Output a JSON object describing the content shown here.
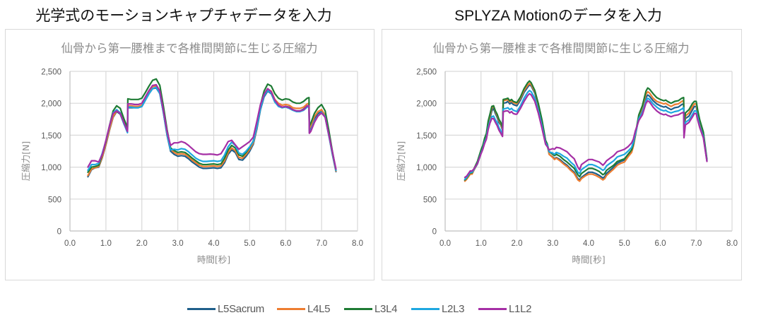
{
  "headings": {
    "left": "光学式のモーションキャプチャデータを入力",
    "right": "SPLYZA Motionのデータを入力"
  },
  "legend": [
    {
      "name": "L5Sacrum",
      "color": "#1f5f8b"
    },
    {
      "name": "L4L5",
      "color": "#ed7d31"
    },
    {
      "name": "L3L4",
      "color": "#1e7b34"
    },
    {
      "name": "L2L3",
      "color": "#1ea7e0"
    },
    {
      "name": "L1L2",
      "color": "#a52fa5"
    }
  ],
  "chart_data": [
    {
      "type": "line",
      "title": "仙骨から第一腰椎まで各椎間関節に生じる圧縮力",
      "xlabel": "時間[秒]",
      "ylabel": "圧縮力[N]",
      "xlim": [
        0,
        8
      ],
      "ylim": [
        0,
        2500
      ],
      "xticks": [
        "0.0",
        "1.0",
        "2.0",
        "3.0",
        "4.0",
        "5.0",
        "6.0",
        "7.0",
        "8.0"
      ],
      "yticks": [
        "0",
        "500",
        "1,000",
        "1,500",
        "2,000",
        "2,500"
      ],
      "grid": true,
      "legend": "bottom",
      "x": [
        0.5,
        0.6,
        0.7,
        0.8,
        0.9,
        1.0,
        1.1,
        1.2,
        1.3,
        1.4,
        1.5,
        1.6,
        1.61,
        1.7,
        1.8,
        1.9,
        2.0,
        2.1,
        2.2,
        2.3,
        2.4,
        2.5,
        2.6,
        2.7,
        2.8,
        2.9,
        3.0,
        3.1,
        3.2,
        3.3,
        3.4,
        3.5,
        3.6,
        3.7,
        3.8,
        3.9,
        4.0,
        4.1,
        4.2,
        4.3,
        4.4,
        4.5,
        4.6,
        4.7,
        4.8,
        4.9,
        5.0,
        5.1,
        5.2,
        5.3,
        5.4,
        5.5,
        5.6,
        5.7,
        5.8,
        5.9,
        6.0,
        6.1,
        6.2,
        6.3,
        6.4,
        6.5,
        6.6,
        6.65,
        6.66,
        6.7,
        6.8,
        6.9,
        7.0,
        7.1,
        7.2,
        7.3,
        7.4
      ],
      "series": [
        {
          "name": "L5Sacrum",
          "values": [
            850,
            960,
            990,
            1000,
            1150,
            1350,
            1580,
            1780,
            1870,
            1830,
            1680,
            1560,
            1930,
            1930,
            1930,
            1930,
            1950,
            2050,
            2150,
            2230,
            2240,
            2150,
            1850,
            1500,
            1250,
            1200,
            1170,
            1180,
            1170,
            1130,
            1080,
            1040,
            1000,
            980,
            980,
            985,
            990,
            980,
            990,
            1070,
            1200,
            1270,
            1230,
            1120,
            1110,
            1170,
            1250,
            1360,
            1600,
            1900,
            2100,
            2190,
            2150,
            2020,
            1960,
            1930,
            1950,
            1940,
            1900,
            1880,
            1880,
            1910,
            1960,
            1960,
            1580,
            1620,
            1760,
            1840,
            1870,
            1780,
            1500,
            1200,
            930
          ]
        },
        {
          "name": "L4L5",
          "values": [
            870,
            970,
            990,
            1010,
            1160,
            1360,
            1590,
            1790,
            1880,
            1850,
            1700,
            1580,
            1960,
            1960,
            1950,
            1950,
            1970,
            2070,
            2170,
            2260,
            2270,
            2170,
            1870,
            1520,
            1280,
            1230,
            1200,
            1210,
            1200,
            1160,
            1110,
            1070,
            1030,
            1010,
            1010,
            1015,
            1020,
            1010,
            1020,
            1100,
            1230,
            1300,
            1260,
            1150,
            1140,
            1200,
            1280,
            1380,
            1620,
            1930,
            2130,
            2220,
            2190,
            2060,
            2000,
            1970,
            1980,
            1970,
            1930,
            1920,
            1920,
            1940,
            1990,
            2000,
            1600,
            1650,
            1790,
            1870,
            1900,
            1810,
            1520,
            1220,
            940
          ]
        },
        {
          "name": "L3L4",
          "values": [
            920,
            1000,
            1010,
            1030,
            1200,
            1400,
            1650,
            1880,
            1960,
            1920,
            1760,
            1620,
            2070,
            2060,
            2060,
            2060,
            2080,
            2170,
            2270,
            2360,
            2380,
            2280,
            1950,
            1590,
            1300,
            1260,
            1230,
            1240,
            1230,
            1190,
            1140,
            1100,
            1060,
            1040,
            1040,
            1045,
            1050,
            1040,
            1050,
            1140,
            1270,
            1340,
            1300,
            1190,
            1170,
            1230,
            1310,
            1410,
            1660,
            1970,
            2190,
            2300,
            2270,
            2150,
            2080,
            2050,
            2070,
            2060,
            2020,
            2000,
            2000,
            2030,
            2080,
            2090,
            1640,
            1690,
            1840,
            1930,
            1980,
            1880,
            1580,
            1250,
            950
          ]
        },
        {
          "name": "L2L3",
          "values": [
            950,
            1040,
            1040,
            1060,
            1220,
            1410,
            1640,
            1850,
            1900,
            1850,
            1680,
            1540,
            1940,
            1940,
            1930,
            1930,
            1950,
            2050,
            2150,
            2230,
            2250,
            2150,
            1850,
            1520,
            1270,
            1280,
            1270,
            1290,
            1280,
            1240,
            1190,
            1140,
            1110,
            1090,
            1090,
            1095,
            1100,
            1090,
            1100,
            1190,
            1320,
            1390,
            1340,
            1220,
            1200,
            1250,
            1320,
            1400,
            1630,
            1920,
            2120,
            2200,
            2160,
            2020,
            1950,
            1930,
            1940,
            1920,
            1890,
            1870,
            1870,
            1890,
            1940,
            1950,
            1540,
            1580,
            1720,
            1800,
            1860,
            1790,
            1500,
            1220,
            950
          ]
        },
        {
          "name": "L1L2",
          "values": [
            1000,
            1100,
            1100,
            1080,
            1200,
            1420,
            1650,
            1840,
            1880,
            1840,
            1700,
            1560,
            1990,
            1990,
            1980,
            1980,
            2000,
            2100,
            2200,
            2280,
            2290,
            2190,
            1880,
            1560,
            1340,
            1380,
            1380,
            1400,
            1380,
            1340,
            1290,
            1240,
            1210,
            1200,
            1200,
            1205,
            1200,
            1190,
            1210,
            1300,
            1400,
            1420,
            1350,
            1280,
            1320,
            1360,
            1400,
            1470,
            1720,
            1980,
            2140,
            2230,
            2180,
            2050,
            1970,
            1940,
            1950,
            1930,
            1900,
            1880,
            1880,
            1900,
            1960,
            1960,
            1530,
            1560,
            1700,
            1800,
            1850,
            1780,
            1510,
            1240,
            970
          ]
        }
      ]
    },
    {
      "type": "line",
      "title": "仙骨から第一腰椎まで各椎間関節に生じる圧縮力",
      "xlabel": "時間[秒]",
      "ylabel": "圧縮力[N]",
      "xlim": [
        0,
        8
      ],
      "ylim": [
        0,
        2500
      ],
      "xticks": [
        "0.0",
        "1.0",
        "2.0",
        "3.0",
        "4.0",
        "5.0",
        "6.0",
        "7.0",
        "8.0"
      ],
      "yticks": [
        "0",
        "500",
        "1,000",
        "1,500",
        "2,000",
        "2,500"
      ],
      "grid": true,
      "legend": "bottom",
      "x": [
        0.55,
        0.6,
        0.65,
        0.7,
        0.75,
        0.8,
        0.9,
        1.0,
        1.05,
        1.1,
        1.15,
        1.2,
        1.25,
        1.3,
        1.35,
        1.4,
        1.45,
        1.5,
        1.55,
        1.6,
        1.62,
        1.7,
        1.75,
        1.8,
        1.85,
        1.9,
        1.95,
        2.0,
        2.1,
        2.2,
        2.3,
        2.35,
        2.4,
        2.5,
        2.6,
        2.7,
        2.8,
        2.85,
        2.9,
        3.0,
        3.05,
        3.1,
        3.2,
        3.3,
        3.4,
        3.5,
        3.6,
        3.7,
        3.75,
        3.8,
        3.9,
        4.0,
        4.1,
        4.2,
        4.3,
        4.4,
        4.45,
        4.5,
        4.6,
        4.7,
        4.8,
        4.9,
        5.0,
        5.1,
        5.2,
        5.25,
        5.3,
        5.4,
        5.5,
        5.6,
        5.65,
        5.7,
        5.8,
        5.9,
        6.0,
        6.1,
        6.15,
        6.2,
        6.3,
        6.4,
        6.5,
        6.6,
        6.65,
        6.66,
        6.7,
        6.8,
        6.9,
        6.95,
        7.0,
        7.05,
        7.1,
        7.2,
        7.3
      ],
      "series": [
        {
          "name": "L5Sacrum",
          "values": [
            790,
            820,
            860,
            900,
            900,
            950,
            1050,
            1220,
            1290,
            1400,
            1480,
            1650,
            1760,
            1880,
            1920,
            1840,
            1780,
            1700,
            1660,
            1580,
            2000,
            2010,
            2030,
            1990,
            2010,
            1980,
            1970,
            1960,
            2050,
            2170,
            2250,
            2290,
            2270,
            2160,
            1950,
            1700,
            1400,
            1340,
            1200,
            1160,
            1130,
            1150,
            1120,
            1070,
            1030,
            970,
            920,
            820,
            800,
            840,
            880,
            920,
            920,
            900,
            870,
            830,
            850,
            900,
            950,
            1000,
            1060,
            1090,
            1110,
            1180,
            1250,
            1340,
            1480,
            1780,
            1900,
            2090,
            2130,
            2110,
            2040,
            1990,
            1960,
            1940,
            1950,
            1930,
            1900,
            1930,
            1940,
            1980,
            1990,
            1580,
            1760,
            1800,
            1900,
            1950,
            1950,
            1800,
            1680,
            1500,
            1100
          ]
        },
        {
          "name": "L4L5",
          "values": [
            780,
            810,
            850,
            890,
            890,
            950,
            1060,
            1240,
            1310,
            1420,
            1500,
            1680,
            1800,
            1920,
            1960,
            1870,
            1810,
            1730,
            1680,
            1600,
            2040,
            2050,
            2060,
            2020,
            2040,
            2010,
            2000,
            1990,
            2080,
            2200,
            2280,
            2310,
            2290,
            2180,
            1970,
            1720,
            1410,
            1350,
            1200,
            1150,
            1120,
            1140,
            1100,
            1050,
            1010,
            950,
            900,
            800,
            780,
            820,
            860,
            890,
            890,
            870,
            840,
            800,
            820,
            870,
            920,
            970,
            1030,
            1060,
            1080,
            1160,
            1230,
            1330,
            1480,
            1800,
            1930,
            2140,
            2180,
            2160,
            2080,
            2030,
            2010,
            1990,
            2000,
            1980,
            1950,
            1980,
            1990,
            2030,
            2040,
            1620,
            1800,
            1850,
            1950,
            1990,
            1990,
            1840,
            1710,
            1520,
            1110
          ]
        },
        {
          "name": "L3L4",
          "values": [
            800,
            830,
            870,
            910,
            910,
            970,
            1090,
            1270,
            1340,
            1450,
            1530,
            1720,
            1830,
            1950,
            1960,
            1880,
            1830,
            1750,
            1700,
            1620,
            2060,
            2070,
            2080,
            2040,
            2060,
            2030,
            2020,
            2010,
            2100,
            2230,
            2320,
            2350,
            2320,
            2200,
            1990,
            1740,
            1420,
            1360,
            1240,
            1200,
            1180,
            1200,
            1170,
            1120,
            1080,
            1030,
            980,
            880,
            850,
            900,
            940,
            980,
            980,
            960,
            930,
            880,
            900,
            950,
            990,
            1030,
            1090,
            1110,
            1130,
            1200,
            1270,
            1360,
            1500,
            1820,
            1960,
            2190,
            2240,
            2220,
            2150,
            2090,
            2060,
            2040,
            2050,
            2030,
            2000,
            2030,
            2040,
            2080,
            2090,
            1670,
            1850,
            1900,
            2000,
            2030,
            2030,
            1870,
            1740,
            1550,
            1120
          ]
        },
        {
          "name": "L2L3",
          "values": [
            810,
            840,
            880,
            920,
            920,
            960,
            1060,
            1220,
            1290,
            1390,
            1460,
            1620,
            1720,
            1790,
            1800,
            1740,
            1700,
            1620,
            1570,
            1520,
            1910,
            1920,
            1930,
            1900,
            1920,
            1890,
            1880,
            1870,
            1960,
            2080,
            2170,
            2200,
            2180,
            2080,
            1880,
            1650,
            1380,
            1340,
            1240,
            1220,
            1200,
            1230,
            1210,
            1170,
            1140,
            1080,
            1030,
            920,
            900,
            960,
            1000,
            1040,
            1040,
            1020,
            990,
            950,
            970,
            1020,
            1060,
            1100,
            1160,
            1180,
            1200,
            1250,
            1310,
            1390,
            1510,
            1760,
            1860,
            2040,
            2080,
            2060,
            1990,
            1940,
            1900,
            1880,
            1890,
            1870,
            1850,
            1870,
            1880,
            1910,
            1930,
            1540,
            1700,
            1740,
            1830,
            1880,
            1880,
            1760,
            1640,
            1480,
            1100
          ]
        },
        {
          "name": "L1L2",
          "values": [
            840,
            860,
            900,
            940,
            940,
            970,
            1060,
            1210,
            1280,
            1370,
            1440,
            1590,
            1690,
            1760,
            1760,
            1700,
            1650,
            1580,
            1530,
            1480,
            1870,
            1880,
            1880,
            1850,
            1870,
            1840,
            1830,
            1830,
            1920,
            2030,
            2120,
            2150,
            2130,
            2030,
            1840,
            1610,
            1360,
            1320,
            1270,
            1290,
            1280,
            1310,
            1300,
            1270,
            1240,
            1180,
            1130,
            1000,
            960,
            1040,
            1080,
            1120,
            1120,
            1100,
            1080,
            1030,
            1060,
            1100,
            1140,
            1180,
            1240,
            1260,
            1280,
            1320,
            1380,
            1440,
            1560,
            1730,
            1820,
            2000,
            2040,
            2020,
            1940,
            1880,
            1840,
            1820,
            1830,
            1810,
            1790,
            1810,
            1820,
            1850,
            1860,
            1460,
            1660,
            1700,
            1790,
            1840,
            1840,
            1720,
            1620,
            1460,
            1090
          ]
        }
      ]
    }
  ]
}
